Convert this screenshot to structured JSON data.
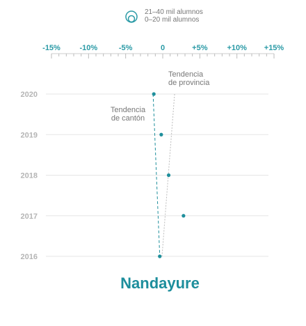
{
  "legend": {
    "icon": "nested-circles-icon",
    "line1": "21–40 mil alumnos",
    "line2": "0–20 mil alumnos"
  },
  "title": "Nandayure",
  "chart_data": {
    "type": "scatter",
    "x_ticks": [
      "-15%",
      "-10%",
      "-5%",
      "0",
      "+5%",
      "+10%",
      "+15%"
    ],
    "xlim": [
      -15,
      15
    ],
    "y_categories": [
      "2020",
      "2019",
      "2018",
      "2017",
      "2016"
    ],
    "points": [
      {
        "year": "2020",
        "value": -1.2
      },
      {
        "year": "2019",
        "value": -0.2
      },
      {
        "year": "2018",
        "value": 0.8
      },
      {
        "year": "2017",
        "value": 2.8
      },
      {
        "year": "2016",
        "value": -0.4
      }
    ],
    "trends": [
      {
        "label_line1": "Tendencia",
        "label_line2": "de cantón",
        "from": {
          "year": "2020",
          "value": -1.3
        },
        "to": {
          "year": "2016",
          "value": -0.4
        },
        "color": "#1f8f9c",
        "dash": "4,3"
      },
      {
        "label_line1": "Tendencia",
        "label_line2": "de provincia",
        "from": {
          "year": "2020",
          "value": 1.6
        },
        "to": {
          "year": "2016",
          "value": -0.1
        },
        "color": "#bbbbbb",
        "dash": "2,2"
      }
    ],
    "colors": {
      "accent": "#2a9aa6",
      "point": "#1f8f9c",
      "grid": "#e5e5e5",
      "muted": "#b5b5b5"
    }
  }
}
